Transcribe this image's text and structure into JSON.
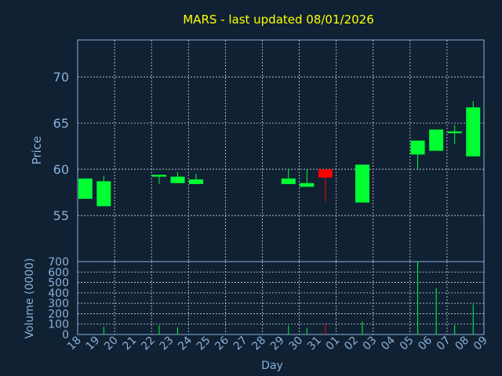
{
  "chart_data": [
    {
      "type": "candlestick",
      "title": "MARS - last updated 08/01/2026",
      "ylabel": "Price",
      "ylim": [
        50,
        74
      ],
      "yticks": [
        55,
        60,
        65,
        70
      ],
      "grid": true,
      "candles": [
        {
          "day": "18",
          "open": 59.0,
          "close": 56.8,
          "high": 59.0,
          "low": 56.8
        },
        {
          "day": "19",
          "open": 58.7,
          "close": 56.0,
          "high": 59.3,
          "low": 56.0
        },
        {
          "day": "22",
          "open": 59.4,
          "close": 59.2,
          "high": 59.4,
          "low": 58.4
        },
        {
          "day": "23",
          "open": 59.2,
          "close": 58.5,
          "high": 59.7,
          "low": 58.5
        },
        {
          "day": "24",
          "open": 58.9,
          "close": 58.4,
          "high": 59.5,
          "low": 58.4
        },
        {
          "day": "29",
          "open": 59.0,
          "close": 58.4,
          "high": 60.0,
          "low": 58.4
        },
        {
          "day": "30",
          "open": 58.5,
          "close": 58.1,
          "high": 60.0,
          "low": 58.1
        },
        {
          "day": "31",
          "open": 59.1,
          "close": 60.0,
          "high": 60.0,
          "low": 56.5
        },
        {
          "day": "02",
          "open": 60.5,
          "close": 56.4,
          "high": 60.5,
          "low": 56.4
        },
        {
          "day": "05",
          "open": 63.1,
          "close": 61.6,
          "high": 63.1,
          "low": 60.0
        },
        {
          "day": "06",
          "open": 64.3,
          "close": 62.0,
          "high": 64.3,
          "low": 62.0
        },
        {
          "day": "07",
          "open": 64.1,
          "close": 63.9,
          "high": 64.8,
          "low": 62.7
        },
        {
          "day": "08",
          "open": 66.7,
          "close": 61.4,
          "high": 67.4,
          "low": 61.4
        }
      ]
    },
    {
      "type": "bar",
      "ylabel": "Volume (0000)",
      "xlabel": "Day",
      "ylim": [
        0,
        700
      ],
      "yticks": [
        0,
        100,
        200,
        300,
        400,
        500,
        600,
        700
      ],
      "grid": true,
      "categories": [
        "18",
        "19",
        "20",
        "21",
        "22",
        "23",
        "24",
        "25",
        "26",
        "27",
        "28",
        "29",
        "30",
        "31",
        "01",
        "02",
        "03",
        "04",
        "05",
        "06",
        "07",
        "08",
        "09"
      ],
      "values": [
        5,
        75,
        0,
        0,
        90,
        70,
        5,
        0,
        0,
        0,
        0,
        85,
        65,
        95,
        0,
        125,
        0,
        0,
        700,
        445,
        90,
        290,
        0
      ]
    }
  ],
  "colors": {
    "background": "#0f2133",
    "axis": "#8ab0d8",
    "grid": "#cfd8e3",
    "title": "#ffff00",
    "up": "#00ff33",
    "down": "#ff0000"
  }
}
